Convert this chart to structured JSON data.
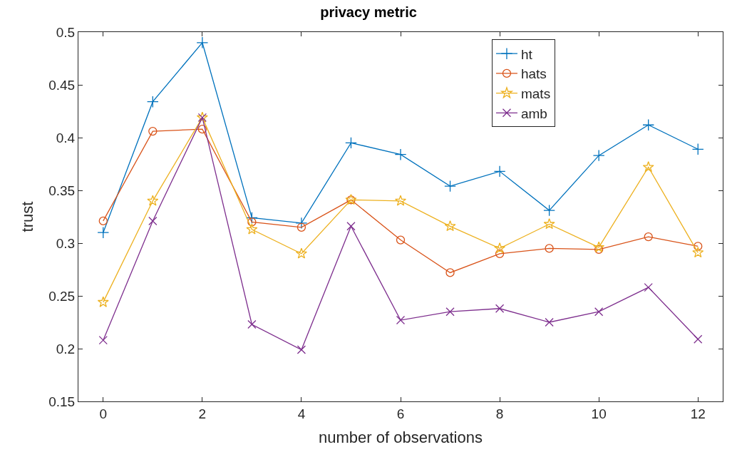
{
  "chart_data": {
    "type": "line",
    "title": "privacy metric",
    "xlabel": "number of observations",
    "ylabel": "trust",
    "x": [
      0,
      1,
      2,
      3,
      4,
      5,
      6,
      7,
      8,
      9,
      10,
      11,
      12
    ],
    "series": [
      {
        "name": "ht",
        "color": "#0072bd",
        "marker": "cross",
        "values": [
          0.31,
          0.434,
          0.49,
          0.324,
          0.319,
          0.395,
          0.384,
          0.354,
          0.368,
          0.331,
          0.383,
          0.412,
          0.389
        ]
      },
      {
        "name": "hats",
        "color": "#d95319",
        "marker": "circle",
        "values": [
          0.321,
          0.406,
          0.408,
          0.32,
          0.315,
          0.341,
          0.303,
          0.272,
          0.29,
          0.295,
          0.294,
          0.306,
          0.297
        ]
      },
      {
        "name": "mats",
        "color": "#edb120",
        "marker": "star",
        "values": [
          0.244,
          0.34,
          0.419,
          0.313,
          0.29,
          0.341,
          0.34,
          0.316,
          0.295,
          0.318,
          0.296,
          0.372,
          0.291
        ]
      },
      {
        "name": "amb",
        "color": "#7e2f8e",
        "marker": "x",
        "values": [
          0.208,
          0.321,
          0.419,
          0.223,
          0.199,
          0.316,
          0.227,
          0.235,
          0.238,
          0.225,
          0.235,
          0.258,
          0.209
        ]
      }
    ],
    "xlim": [
      -0.5,
      12.5
    ],
    "xticks": [
      0,
      2,
      4,
      6,
      8,
      10,
      12
    ],
    "ylim": [
      0.15,
      0.5
    ],
    "yticks": [
      0.15,
      0.2,
      0.25,
      0.3,
      0.35,
      0.4,
      0.45,
      0.5
    ],
    "legend": "top right",
    "line_style": "solid"
  }
}
